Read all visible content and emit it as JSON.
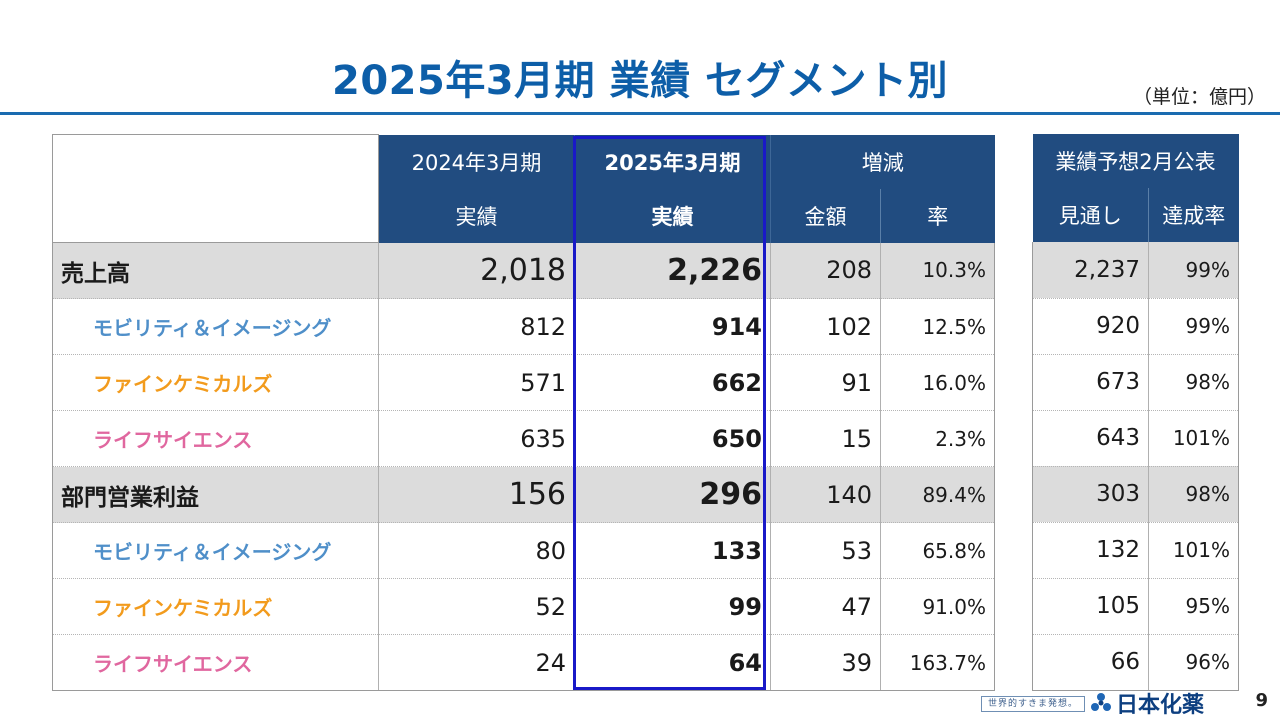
{
  "title": "2025年3月期 業績 セグメント別",
  "unit": "（単位：億円）",
  "header": {
    "prev_period": "2024年3月期",
    "cur_period": "2025年3月期",
    "change": "増減",
    "actual_prev": "実績",
    "actual_cur": "実績",
    "amount": "金額",
    "rate": "率"
  },
  "forecast_header": {
    "title": "業績予想2月公表",
    "outlook": "見通し",
    "achievement": "達成率"
  },
  "rows": [
    {
      "label": "売上高",
      "prev": "2,018",
      "cur": "2,226",
      "amount": "208",
      "rate": "10.3%",
      "outlook": "2,237",
      "achievement": "99%"
    },
    {
      "label": "モビリティ＆イメージング",
      "prev": "812",
      "cur": "914",
      "amount": "102",
      "rate": "12.5%",
      "outlook": "920",
      "achievement": "99%"
    },
    {
      "label": "ファインケミカルズ",
      "prev": "571",
      "cur": "662",
      "amount": "91",
      "rate": "16.0%",
      "outlook": "673",
      "achievement": "98%"
    },
    {
      "label": "ライフサイエンス",
      "prev": "635",
      "cur": "650",
      "amount": "15",
      "rate": "2.3%",
      "outlook": "643",
      "achievement": "101%"
    },
    {
      "label": "部門営業利益",
      "prev": "156",
      "cur": "296",
      "amount": "140",
      "rate": "89.4%",
      "outlook": "303",
      "achievement": "98%"
    },
    {
      "label": "モビリティ＆イメージング",
      "prev": "80",
      "cur": "133",
      "amount": "53",
      "rate": "65.8%",
      "outlook": "132",
      "achievement": "101%"
    },
    {
      "label": "ファインケミカルズ",
      "prev": "52",
      "cur": "99",
      "amount": "47",
      "rate": "91.0%",
      "outlook": "105",
      "achievement": "95%"
    },
    {
      "label": "ライフサイエンス",
      "prev": "24",
      "cur": "64",
      "amount": "39",
      "rate": "163.7%",
      "outlook": "66",
      "achievement": "96%"
    }
  ],
  "colors": {
    "title": "#0d5ea8",
    "header_bg": "#214c80",
    "highlight": "#1919c8",
    "mobility": "#4f8fc9",
    "fine_chemicals": "#f29b1d",
    "life_science": "#e0679f",
    "total_row_bg": "#dcdcdc"
  },
  "footer": {
    "tagline": "世界的すきま発想。",
    "company": "日本化薬",
    "page_number": "9"
  }
}
